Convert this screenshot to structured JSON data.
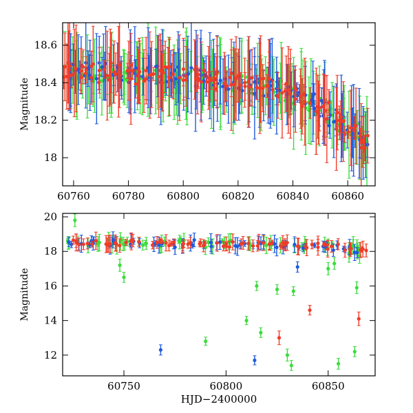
{
  "chart_data": [
    {
      "type": "scatter",
      "panel": "top",
      "xlabel": "",
      "ylabel": "Magnitude",
      "xlim": [
        60756,
        60870
      ],
      "ylim": [
        18.72,
        17.85
      ],
      "y_inverted": true,
      "x_ticks": [
        60760,
        60780,
        60800,
        60820,
        60840,
        60860
      ],
      "x_tick_labels": [
        "60760",
        "60780",
        "60800",
        "60820",
        "60840",
        "60860"
      ],
      "y_ticks": [
        18.0,
        18.2,
        18.4,
        18.6
      ],
      "y_tick_labels": [
        "18",
        "18.2",
        "18.4",
        "18.6"
      ],
      "grid": false,
      "legend": "none",
      "series": [
        {
          "color": "#3cdc3c",
          "marker": "circle-with-errorbar",
          "x": [
            60758,
            60762,
            60766,
            60770,
            60774,
            60778,
            60782,
            60786,
            60790,
            60794,
            60798,
            60802,
            60806,
            60810,
            60814,
            60818,
            60822,
            60826,
            60830,
            60834,
            60838,
            60842,
            60846,
            60850,
            60854,
            60858,
            60862,
            60866
          ],
          "y": [
            18.45,
            18.45,
            18.44,
            18.45,
            18.45,
            18.44,
            18.43,
            18.44,
            18.45,
            18.43,
            18.44,
            18.44,
            18.42,
            18.41,
            18.41,
            18.4,
            18.4,
            18.38,
            18.37,
            18.38,
            18.35,
            18.33,
            18.3,
            18.28,
            18.22,
            18.18,
            18.15,
            18.1
          ]
        },
        {
          "color": "#1e5adc",
          "marker": "circle-with-errorbar",
          "x": [
            60759,
            60763,
            60767,
            60771,
            60775,
            60779,
            60783,
            60787,
            60791,
            60795,
            60799,
            60803,
            60807,
            60811,
            60815,
            60819,
            60823,
            60827,
            60831,
            60835,
            60839,
            60843,
            60847,
            60851,
            60855,
            60859,
            60863,
            60866
          ],
          "y": [
            18.46,
            18.46,
            18.45,
            18.46,
            18.45,
            18.45,
            18.44,
            18.45,
            18.45,
            18.44,
            18.44,
            18.43,
            18.42,
            18.42,
            18.41,
            18.41,
            18.4,
            18.39,
            18.38,
            18.37,
            18.36,
            18.33,
            18.3,
            18.27,
            18.22,
            18.18,
            18.14,
            18.1
          ]
        },
        {
          "color": "#f03c28",
          "marker": "circle-with-errorbar",
          "x": [
            60757,
            60760,
            60764,
            60768,
            60772,
            60776,
            60780,
            60784,
            60788,
            60792,
            60796,
            60800,
            60804,
            60808,
            60812,
            60816,
            60820,
            60824,
            60828,
            60832,
            60836,
            60840,
            60844,
            60848,
            60852,
            60856,
            60860,
            60864,
            60866
          ],
          "y": [
            18.46,
            18.46,
            18.46,
            18.45,
            18.46,
            18.45,
            18.45,
            18.44,
            18.45,
            18.45,
            18.44,
            18.44,
            18.43,
            18.43,
            18.41,
            18.41,
            18.4,
            18.39,
            18.38,
            18.38,
            18.37,
            18.35,
            18.32,
            18.29,
            18.25,
            18.2,
            18.17,
            18.13,
            18.1
          ]
        }
      ]
    },
    {
      "type": "scatter",
      "panel": "bottom",
      "xlabel": "HJD−2400000",
      "ylabel": "Magnitude",
      "xlim": [
        60720,
        60873
      ],
      "ylim": [
        20.2,
        10.8
      ],
      "y_inverted": true,
      "x_ticks": [
        60750,
        60800,
        60850
      ],
      "x_tick_labels": [
        "60750",
        "60800",
        "60850"
      ],
      "y_ticks": [
        12,
        14,
        16,
        18,
        20
      ],
      "y_tick_labels": [
        "12",
        "14",
        "16",
        "18",
        "20"
      ],
      "grid": false,
      "legend": "none",
      "series": [
        {
          "color": "#3cdc3c",
          "marker": "circle-with-errorbar",
          "x": [
            60725,
            60735,
            60745,
            60750,
            60760,
            60770,
            60780,
            60790,
            60800,
            60810,
            60820,
            60830,
            60840,
            60850,
            60860,
            60865,
            60726,
            60748,
            60750,
            60790,
            60810,
            60815,
            60817,
            60825,
            60830,
            60832,
            60833,
            60850,
            60853,
            60855,
            60862,
            60863,
            60864
          ],
          "y": [
            18.5,
            18.5,
            18.5,
            18.5,
            18.5,
            18.4,
            18.5,
            18.4,
            18.5,
            18.4,
            18.4,
            18.3,
            18.3,
            18.3,
            18.2,
            18.1,
            19.8,
            17.2,
            16.5,
            12.8,
            14.0,
            16.0,
            13.3,
            15.8,
            12.0,
            11.4,
            15.7,
            17.0,
            17.3,
            11.5,
            17.9,
            12.2,
            15.9
          ]
        },
        {
          "color": "#1e5adc",
          "marker": "circle-with-errorbar",
          "x": [
            60726,
            60736,
            60746,
            60756,
            60766,
            60776,
            60786,
            60796,
            60806,
            60816,
            60826,
            60836,
            60846,
            60856,
            60864,
            60768,
            60814,
            60835
          ],
          "y": [
            18.5,
            18.5,
            18.5,
            18.5,
            18.5,
            18.4,
            18.5,
            18.4,
            18.4,
            18.4,
            18.4,
            18.3,
            18.3,
            18.2,
            18.1,
            12.3,
            11.7,
            17.1
          ]
        },
        {
          "color": "#f03c28",
          "marker": "circle-with-errorbar",
          "x": [
            60725,
            60733,
            60741,
            60749,
            60757,
            60765,
            60773,
            60781,
            60789,
            60797,
            60805,
            60813,
            60821,
            60829,
            60837,
            60845,
            60853,
            60861,
            60867,
            60826,
            60841,
            60865
          ],
          "y": [
            18.5,
            18.5,
            18.5,
            18.5,
            18.5,
            18.5,
            18.5,
            18.4,
            18.5,
            18.4,
            18.4,
            18.4,
            18.4,
            18.4,
            18.3,
            18.3,
            18.3,
            18.2,
            18.2,
            13.0,
            14.6,
            14.1
          ]
        }
      ]
    }
  ]
}
